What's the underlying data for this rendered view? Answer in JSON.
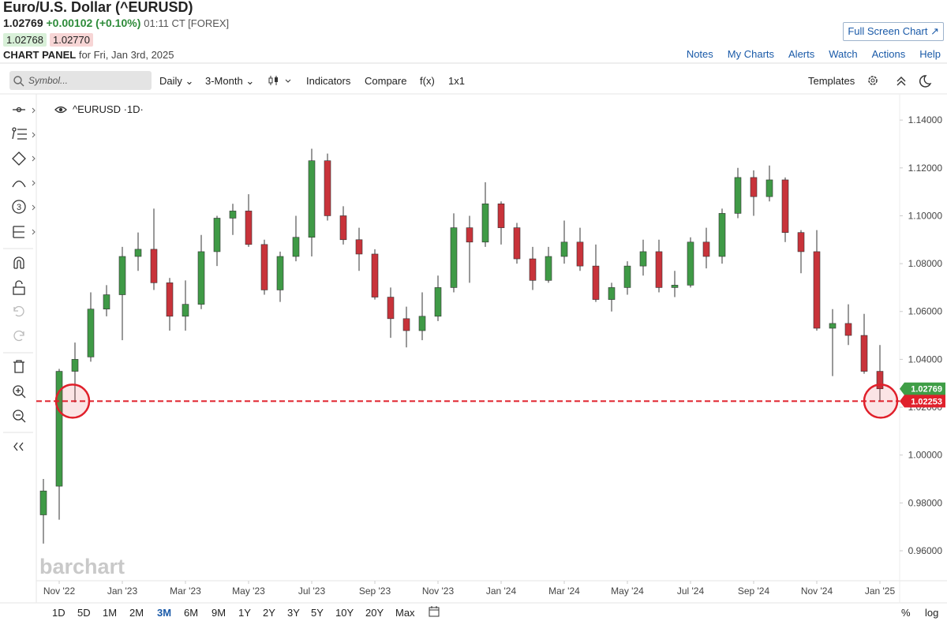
{
  "header": {
    "title": "Euro/U.S. Dollar (^EURUSD)",
    "last": "1.02769",
    "change": "+0.00102 (+0.10%)",
    "time": "01:11 CT [FOREX]",
    "bid": "1.02768",
    "ask": "1.02770",
    "panel": "CHART PANEL",
    "panel_date": "for Fri, Jan 3rd, 2025",
    "full_screen": "Full Screen Chart",
    "links": [
      "Notes",
      "My Charts",
      "Alerts",
      "Watch",
      "Actions",
      "Help"
    ]
  },
  "toolbar": {
    "search": "Symbol...",
    "interval": "Daily",
    "range": "3-Month",
    "items": [
      "Indicators",
      "Compare",
      "f(x)",
      "1x1"
    ],
    "templates": "Templates"
  },
  "range_bar": {
    "buttons": [
      "1D",
      "5D",
      "1M",
      "2M",
      "3M",
      "6M",
      "9M",
      "1Y",
      "2Y",
      "3Y",
      "5Y",
      "10Y",
      "20Y",
      "Max"
    ],
    "active": "3M",
    "percent": "%",
    "log": "log"
  },
  "chart_data": {
    "type": "candlestick",
    "symbol_label": "^EURUSD ·1D·",
    "watermark": "barchart",
    "categories": [
      null,
      "Nov '22",
      null,
      null,
      null,
      "Jan '23",
      null,
      null,
      null,
      "Mar '23",
      null,
      null,
      null,
      "May '23",
      null,
      null,
      null,
      "Jul '23",
      null,
      null,
      null,
      "Sep '23",
      null,
      null,
      null,
      "Nov '23",
      null,
      null,
      null,
      "Jan '24",
      null,
      null,
      null,
      "Mar '24",
      null,
      null,
      null,
      "May '24",
      null,
      null,
      null,
      "Jul '24",
      null,
      null,
      null,
      "Sep '24",
      null,
      null,
      null,
      "Nov '24",
      null,
      null,
      null,
      "Jan '25"
    ],
    "open": [
      0.975,
      0.987,
      1.035,
      1.041,
      1.061,
      1.067,
      1.083,
      1.086,
      1.072,
      1.058,
      1.063,
      1.085,
      1.099,
      1.102,
      1.088,
      1.069,
      1.083,
      1.091,
      1.123,
      1.1,
      1.09,
      1.084,
      1.066,
      1.057,
      1.052,
      1.058,
      1.07,
      1.095,
      1.089,
      1.105,
      1.095,
      1.082,
      1.073,
      1.083,
      1.089,
      1.079,
      1.065,
      1.07,
      1.079,
      1.085,
      1.07,
      1.071,
      1.089,
      1.083,
      1.101,
      1.116,
      1.108,
      1.115,
      1.093,
      1.085,
      1.053,
      1.055,
      1.05,
      1.035
    ],
    "high": [
      0.99,
      1.036,
      1.047,
      1.068,
      1.071,
      1.087,
      1.093,
      1.103,
      1.074,
      1.073,
      1.092,
      1.1,
      1.105,
      1.109,
      1.09,
      1.085,
      1.1,
      1.128,
      1.126,
      1.104,
      1.095,
      1.086,
      1.07,
      1.062,
      1.068,
      1.075,
      1.101,
      1.1,
      1.114,
      1.106,
      1.097,
      1.087,
      1.087,
      1.098,
      1.095,
      1.088,
      1.072,
      1.081,
      1.09,
      1.09,
      1.077,
      1.091,
      1.095,
      1.103,
      1.12,
      1.119,
      1.121,
      1.116,
      1.094,
      1.094,
      1.061,
      1.063,
      1.059,
      1.046
    ],
    "low": [
      0.963,
      0.973,
      1.022,
      1.039,
      1.058,
      1.048,
      1.077,
      1.069,
      1.052,
      1.052,
      1.061,
      1.079,
      1.092,
      1.087,
      1.067,
      1.064,
      1.081,
      1.083,
      1.098,
      1.088,
      1.077,
      1.065,
      1.049,
      1.045,
      1.048,
      1.056,
      1.068,
      1.072,
      1.087,
      1.088,
      1.08,
      1.069,
      1.072,
      1.08,
      1.077,
      1.064,
      1.06,
      1.067,
      1.075,
      1.068,
      1.066,
      1.07,
      1.078,
      1.08,
      1.099,
      1.1,
      1.106,
      1.089,
      1.076,
      1.052,
      1.033,
      1.046,
      1.034,
      1.0225
    ],
    "close": [
      0.985,
      1.035,
      1.04,
      1.061,
      1.067,
      1.083,
      1.086,
      1.072,
      1.058,
      1.063,
      1.085,
      1.099,
      1.102,
      1.088,
      1.069,
      1.083,
      1.091,
      1.123,
      1.1,
      1.09,
      1.084,
      1.066,
      1.057,
      1.052,
      1.058,
      1.07,
      1.095,
      1.089,
      1.105,
      1.095,
      1.082,
      1.073,
      1.083,
      1.089,
      1.079,
      1.065,
      1.07,
      1.079,
      1.085,
      1.07,
      1.071,
      1.089,
      1.083,
      1.101,
      1.116,
      1.108,
      1.115,
      1.093,
      1.085,
      1.053,
      1.055,
      1.05,
      1.035,
      1.02769
    ],
    "up_color": "#3f9a46",
    "down_color": "#c8333a",
    "wick_color": "#333333",
    "ylim": [
      0.9478,
      1.1506
    ],
    "yticks": [
      {
        "value": 0.96,
        "label": "0.96000"
      },
      {
        "value": 0.98,
        "label": "0.98000"
      },
      {
        "value": 1.0,
        "label": "1.00000"
      },
      {
        "value": 1.02,
        "label": "1.02000"
      },
      {
        "value": 1.04,
        "label": "1.04000"
      },
      {
        "value": 1.06,
        "label": "1.06000"
      },
      {
        "value": 1.08,
        "label": "1.08000"
      },
      {
        "value": 1.1,
        "label": "1.10000"
      },
      {
        "value": 1.12,
        "label": "1.12000"
      },
      {
        "value": 1.14,
        "label": "1.14000"
      }
    ],
    "grid": false,
    "last_price": 1.02769,
    "last_price_color": "#3f9e46",
    "reference_line": 1.02253,
    "reference_color": "#e0202b"
  }
}
